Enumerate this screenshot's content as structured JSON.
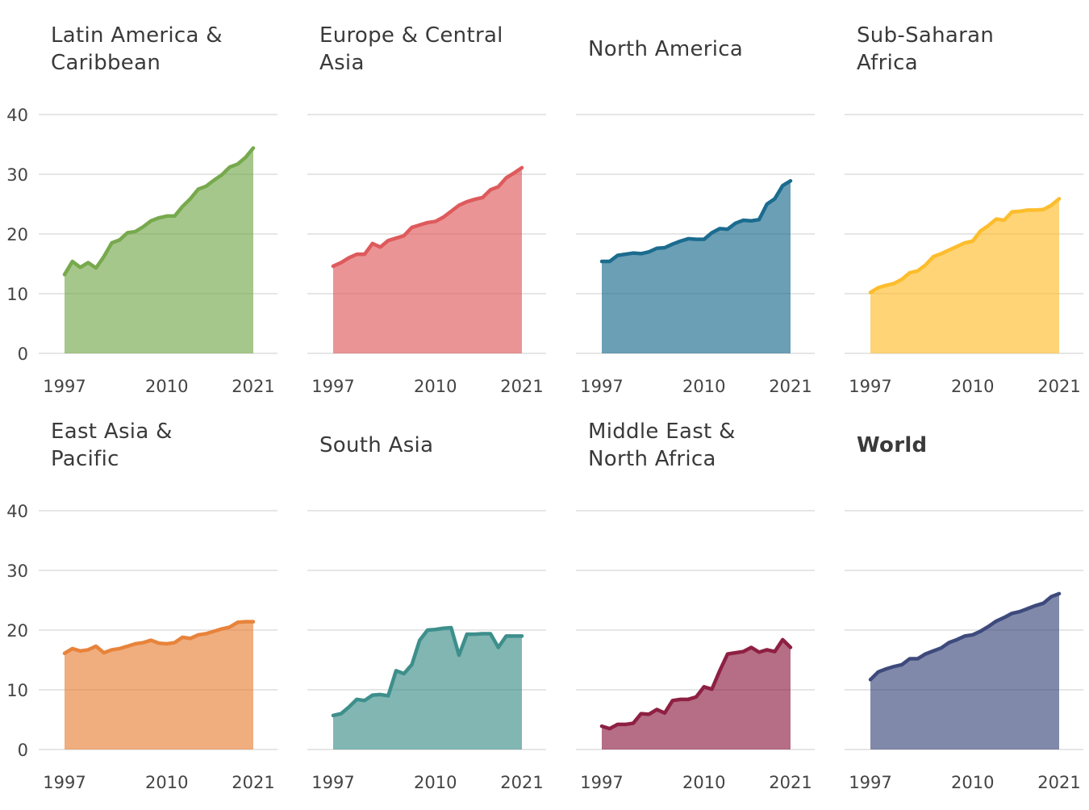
{
  "chart_data": {
    "type": "area",
    "x": [
      1997,
      1998,
      1999,
      2000,
      2001,
      2002,
      2003,
      2004,
      2005,
      2006,
      2007,
      2008,
      2009,
      2010,
      2011,
      2012,
      2013,
      2014,
      2015,
      2016,
      2017,
      2018,
      2019,
      2020,
      2021
    ],
    "x_ticks": [
      "1997",
      "2010",
      "2021"
    ],
    "y_ticks": [
      0,
      10,
      20,
      30,
      40
    ],
    "ylim": [
      0,
      40
    ],
    "grid": true,
    "panels": [
      {
        "title": "Latin America & Caribbean",
        "title_lines": [
          "Latin America &",
          "Caribbean"
        ],
        "color": "#77a94d",
        "values": [
          13.2,
          15.4,
          14.4,
          15.2,
          14.3,
          16.2,
          18.5,
          19.0,
          20.2,
          20.4,
          21.2,
          22.2,
          22.7,
          23.0,
          23.0,
          24.6,
          25.9,
          27.5,
          28.0,
          29.0,
          29.9,
          31.2,
          31.7,
          32.8,
          34.4
        ]
      },
      {
        "title": "Europe & Central Asia",
        "title_lines": [
          "Europe & Central",
          "Asia"
        ],
        "color": "#de5a5c",
        "values": [
          14.6,
          15.2,
          16.0,
          16.6,
          16.6,
          18.4,
          17.8,
          18.9,
          19.3,
          19.7,
          21.1,
          21.5,
          21.9,
          22.1,
          22.8,
          23.8,
          24.8,
          25.4,
          25.8,
          26.1,
          27.4,
          27.9,
          29.4,
          30.2,
          31.1
        ]
      },
      {
        "title": "North America",
        "title_lines": [
          "North America"
        ],
        "color": "#1b6c8f",
        "values": [
          15.4,
          15.4,
          16.4,
          16.6,
          16.8,
          16.7,
          17.0,
          17.6,
          17.7,
          18.3,
          18.8,
          19.2,
          19.1,
          19.1,
          20.2,
          20.9,
          20.8,
          21.8,
          22.3,
          22.2,
          22.4,
          25.0,
          25.9,
          28.1,
          28.9
        ]
      },
      {
        "title": "Sub-Saharan Africa",
        "title_lines": [
          "Sub-Saharan",
          "Africa"
        ],
        "color": "#fdbd2c",
        "values": [
          10.2,
          11.0,
          11.4,
          11.7,
          12.4,
          13.5,
          13.8,
          14.8,
          16.2,
          16.7,
          17.3,
          17.9,
          18.5,
          18.8,
          20.5,
          21.4,
          22.5,
          22.3,
          23.7,
          23.8,
          24.0,
          24.0,
          24.1,
          24.8,
          25.9
        ]
      },
      {
        "title": "East Asia & Pacific",
        "title_lines": [
          "East Asia &",
          "Pacific"
        ],
        "color": "#e8833b",
        "values": [
          16.1,
          16.9,
          16.5,
          16.7,
          17.3,
          16.2,
          16.7,
          16.9,
          17.3,
          17.7,
          17.9,
          18.3,
          17.8,
          17.7,
          17.9,
          18.8,
          18.6,
          19.2,
          19.4,
          19.8,
          20.2,
          20.5,
          21.3,
          21.4,
          21.4
        ]
      },
      {
        "title": "South Asia",
        "title_lines": [
          "South Asia"
        ],
        "color": "#3d8f8b",
        "values": [
          5.7,
          6.0,
          7.1,
          8.4,
          8.2,
          9.1,
          9.2,
          9.0,
          13.2,
          12.7,
          14.2,
          18.3,
          20.0,
          20.1,
          20.3,
          20.4,
          15.8,
          19.3,
          19.3,
          19.4,
          19.4,
          17.1,
          19.0,
          19.0,
          19.0
        ]
      },
      {
        "title": "Middle East & North Africa",
        "title_lines": [
          "Middle East &",
          "North Africa"
        ],
        "color": "#8e2043",
        "values": [
          3.9,
          3.5,
          4.2,
          4.2,
          4.4,
          6.0,
          5.9,
          6.7,
          6.1,
          8.2,
          8.4,
          8.4,
          8.8,
          10.5,
          10.1,
          13.2,
          16.0,
          16.2,
          16.4,
          17.1,
          16.3,
          16.7,
          16.4,
          18.4,
          17.1
        ]
      },
      {
        "title": "World",
        "title_lines": [
          "World"
        ],
        "bold": true,
        "color": "#3e4a7c",
        "values": [
          11.7,
          13.0,
          13.5,
          13.9,
          14.2,
          15.2,
          15.2,
          16.0,
          16.5,
          17.0,
          17.9,
          18.4,
          19.0,
          19.2,
          19.8,
          20.6,
          21.5,
          22.1,
          22.8,
          23.1,
          23.6,
          24.1,
          24.5,
          25.6,
          26.1
        ]
      }
    ]
  }
}
